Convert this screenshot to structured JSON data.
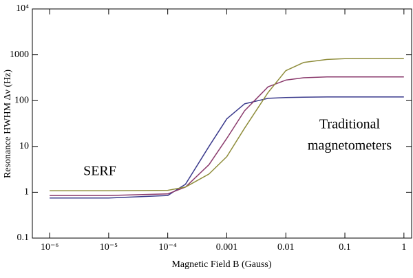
{
  "chart_data": {
    "type": "line",
    "x_label": "Magnetic Field B (Gauss)",
    "y_label": "Resonance HWHM Δν (Hz)",
    "x_scale": "log",
    "y_scale": "log",
    "x": [
      1e-06,
      1e-05,
      0.0001,
      0.0002,
      0.0005,
      0.001,
      0.002,
      0.005,
      0.01,
      0.02,
      0.05,
      0.1,
      1
    ],
    "series": [
      {
        "color": "#3a3a8c",
        "values": [
          0.75,
          0.75,
          0.85,
          1.5,
          10,
          40,
          85,
          112,
          117,
          119,
          120,
          120,
          120
        ]
      },
      {
        "color": "#8a3a6c",
        "values": [
          0.85,
          0.85,
          0.92,
          1.3,
          4,
          15,
          60,
          200,
          280,
          315,
          328,
          330,
          330
        ]
      },
      {
        "color": "#8e8c3a",
        "values": [
          1.08,
          1.08,
          1.1,
          1.3,
          2.5,
          6,
          25,
          150,
          450,
          680,
          790,
          820,
          830
        ]
      }
    ],
    "xlim": [
      5.1e-07,
      1.35
    ],
    "ylim": [
      0.1,
      10000
    ],
    "xticks": [
      {
        "value": 1e-06,
        "label": "10⁻⁶"
      },
      {
        "value": 1e-05,
        "label": "10⁻⁵"
      },
      {
        "value": 0.0001,
        "label": "10⁻⁴"
      },
      0.001,
      0.01,
      0.1,
      1
    ],
    "yticks": [
      0.1,
      1,
      10,
      100,
      1000,
      {
        "value": 10000,
        "label": "10⁴"
      }
    ],
    "annotations": [
      "SERF",
      "Traditional",
      "magnetometers"
    ]
  }
}
